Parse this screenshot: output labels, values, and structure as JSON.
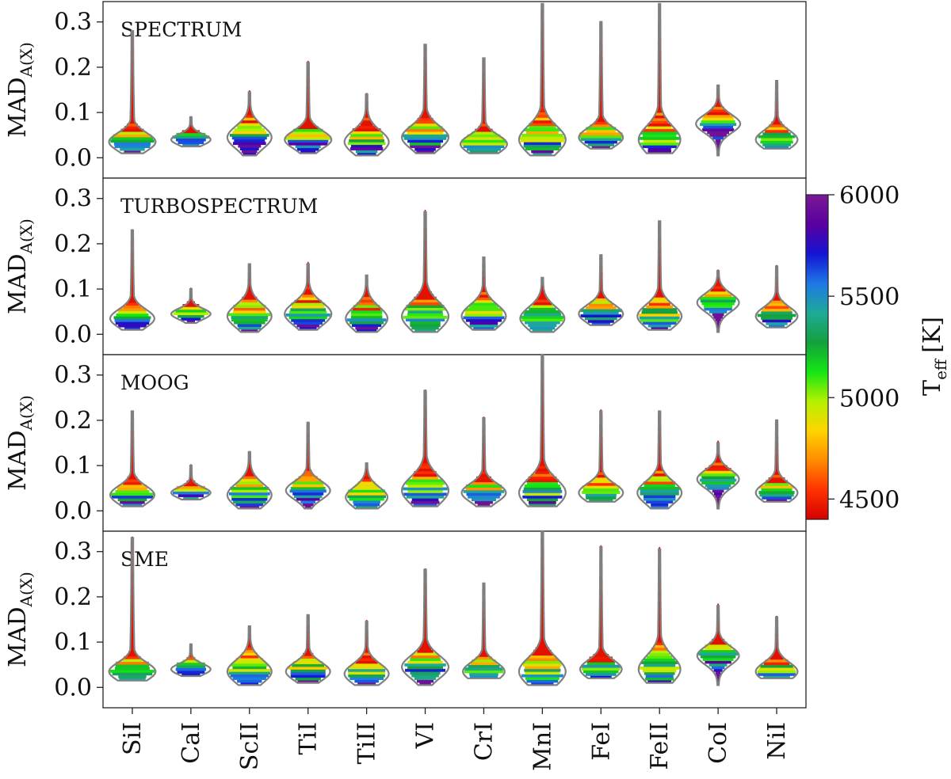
{
  "chart_data": {
    "type": "violin",
    "categories": [
      "SiI",
      "CaI",
      "ScII",
      "TiI",
      "TiII",
      "VI",
      "CrI",
      "MnI",
      "FeI",
      "FeII",
      "CoI",
      "NiI"
    ],
    "y_label_main": "MAD",
    "y_label_sub": "A(X)",
    "ylim": [
      -0.045,
      0.345
    ],
    "yticks": [
      0.0,
      0.1,
      0.2,
      0.3
    ],
    "ytick_labels": [
      "0.0",
      "0.1",
      "0.2",
      "0.3"
    ],
    "colorbar": {
      "label_main": "T",
      "label_sub": "eff",
      "label_unit": "[K]",
      "range": [
        4400,
        6000
      ],
      "ticks": [
        4500,
        5000,
        5500,
        6000
      ],
      "tick_labels": [
        "4500",
        "5000",
        "5500",
        "6000"
      ],
      "colors": [
        "#d40000",
        "#ff3300",
        "#ff8c00",
        "#ffd400",
        "#b4f000",
        "#14e614",
        "#14a03c",
        "#1eaa96",
        "#1e78e6",
        "#1414d2",
        "#5a00a0",
        "#7a1a96"
      ]
    },
    "panels": [
      {
        "name": "SPECTRUM",
        "violins": [
          {
            "median": 0.035,
            "min": 0.01,
            "max": 0.28,
            "spread": 0.02,
            "peak_width": 0.95
          },
          {
            "median": 0.04,
            "min": 0.025,
            "max": 0.09,
            "spread": 0.012,
            "peak_width": 0.8
          },
          {
            "median": 0.045,
            "min": 0.005,
            "max": 0.145,
            "spread": 0.025,
            "peak_width": 0.9
          },
          {
            "median": 0.04,
            "min": 0.01,
            "max": 0.21,
            "spread": 0.02,
            "peak_width": 0.95
          },
          {
            "median": 0.035,
            "min": 0.005,
            "max": 0.14,
            "spread": 0.025,
            "peak_width": 0.9
          },
          {
            "median": 0.045,
            "min": 0.01,
            "max": 0.25,
            "spread": 0.025,
            "peak_width": 0.95
          },
          {
            "median": 0.03,
            "min": 0.01,
            "max": 0.22,
            "spread": 0.02,
            "peak_width": 0.95
          },
          {
            "median": 0.04,
            "min": 0.005,
            "max": 0.34,
            "spread": 0.03,
            "peak_width": 0.95
          },
          {
            "median": 0.045,
            "min": 0.02,
            "max": 0.3,
            "spread": 0.02,
            "peak_width": 0.9
          },
          {
            "median": 0.04,
            "min": 0.01,
            "max": 0.34,
            "spread": 0.03,
            "peak_width": 0.85
          },
          {
            "median": 0.075,
            "min": 0.005,
            "max": 0.16,
            "spread": 0.02,
            "peak_width": 0.9
          },
          {
            "median": 0.04,
            "min": 0.02,
            "max": 0.17,
            "spread": 0.02,
            "peak_width": 0.85
          }
        ]
      },
      {
        "name": "TURBOSPECTRUM",
        "violins": [
          {
            "median": 0.035,
            "min": 0.01,
            "max": 0.23,
            "spread": 0.02,
            "peak_width": 0.9
          },
          {
            "median": 0.045,
            "min": 0.025,
            "max": 0.1,
            "spread": 0.012,
            "peak_width": 0.8
          },
          {
            "median": 0.04,
            "min": 0.005,
            "max": 0.155,
            "spread": 0.025,
            "peak_width": 0.9
          },
          {
            "median": 0.045,
            "min": 0.01,
            "max": 0.155,
            "spread": 0.025,
            "peak_width": 0.95
          },
          {
            "median": 0.035,
            "min": 0.005,
            "max": 0.13,
            "spread": 0.025,
            "peak_width": 0.85
          },
          {
            "median": 0.04,
            "min": 0.005,
            "max": 0.27,
            "spread": 0.03,
            "peak_width": 0.95
          },
          {
            "median": 0.04,
            "min": 0.01,
            "max": 0.17,
            "spread": 0.025,
            "peak_width": 0.9
          },
          {
            "median": 0.035,
            "min": 0.005,
            "max": 0.125,
            "spread": 0.025,
            "peak_width": 0.9
          },
          {
            "median": 0.045,
            "min": 0.02,
            "max": 0.175,
            "spread": 0.02,
            "peak_width": 0.9
          },
          {
            "median": 0.04,
            "min": 0.01,
            "max": 0.25,
            "spread": 0.025,
            "peak_width": 0.9
          },
          {
            "median": 0.07,
            "min": 0.005,
            "max": 0.14,
            "spread": 0.02,
            "peak_width": 0.85
          },
          {
            "median": 0.04,
            "min": 0.015,
            "max": 0.15,
            "spread": 0.02,
            "peak_width": 0.85
          }
        ]
      },
      {
        "name": "MOOG",
        "violins": [
          {
            "median": 0.035,
            "min": 0.01,
            "max": 0.22,
            "spread": 0.02,
            "peak_width": 0.9
          },
          {
            "median": 0.04,
            "min": 0.025,
            "max": 0.1,
            "spread": 0.012,
            "peak_width": 0.8
          },
          {
            "median": 0.035,
            "min": 0.005,
            "max": 0.13,
            "spread": 0.025,
            "peak_width": 0.9
          },
          {
            "median": 0.045,
            "min": 0.005,
            "max": 0.195,
            "spread": 0.02,
            "peak_width": 0.9
          },
          {
            "median": 0.03,
            "min": 0.005,
            "max": 0.105,
            "spread": 0.022,
            "peak_width": 0.85
          },
          {
            "median": 0.045,
            "min": 0.01,
            "max": 0.265,
            "spread": 0.03,
            "peak_width": 0.95
          },
          {
            "median": 0.04,
            "min": 0.01,
            "max": 0.205,
            "spread": 0.02,
            "peak_width": 0.9
          },
          {
            "median": 0.04,
            "min": 0.01,
            "max": 0.345,
            "spread": 0.03,
            "peak_width": 0.95
          },
          {
            "median": 0.04,
            "min": 0.02,
            "max": 0.22,
            "spread": 0.02,
            "peak_width": 0.9
          },
          {
            "median": 0.04,
            "min": 0.005,
            "max": 0.22,
            "spread": 0.025,
            "peak_width": 0.9
          },
          {
            "median": 0.07,
            "min": 0.005,
            "max": 0.15,
            "spread": 0.02,
            "peak_width": 0.85
          },
          {
            "median": 0.04,
            "min": 0.02,
            "max": 0.2,
            "spread": 0.02,
            "peak_width": 0.85
          }
        ]
      },
      {
        "name": "SME",
        "violins": [
          {
            "median": 0.035,
            "min": 0.015,
            "max": 0.33,
            "spread": 0.02,
            "peak_width": 0.95
          },
          {
            "median": 0.04,
            "min": 0.025,
            "max": 0.095,
            "spread": 0.012,
            "peak_width": 0.8
          },
          {
            "median": 0.035,
            "min": 0.005,
            "max": 0.135,
            "spread": 0.025,
            "peak_width": 0.9
          },
          {
            "median": 0.035,
            "min": 0.01,
            "max": 0.16,
            "spread": 0.02,
            "peak_width": 0.9
          },
          {
            "median": 0.03,
            "min": 0.005,
            "max": 0.145,
            "spread": 0.022,
            "peak_width": 0.9
          },
          {
            "median": 0.045,
            "min": 0.005,
            "max": 0.26,
            "spread": 0.025,
            "peak_width": 0.95
          },
          {
            "median": 0.035,
            "min": 0.02,
            "max": 0.23,
            "spread": 0.02,
            "peak_width": 0.85
          },
          {
            "median": 0.035,
            "min": 0.005,
            "max": 0.345,
            "spread": 0.03,
            "peak_width": 0.95
          },
          {
            "median": 0.04,
            "min": 0.02,
            "max": 0.31,
            "spread": 0.02,
            "peak_width": 0.85
          },
          {
            "median": 0.04,
            "min": 0.01,
            "max": 0.305,
            "spread": 0.03,
            "peak_width": 0.85
          },
          {
            "median": 0.07,
            "min": 0.005,
            "max": 0.18,
            "spread": 0.02,
            "peak_width": 0.85
          },
          {
            "median": 0.035,
            "min": 0.02,
            "max": 0.155,
            "spread": 0.02,
            "peak_width": 0.85
          }
        ]
      }
    ]
  }
}
